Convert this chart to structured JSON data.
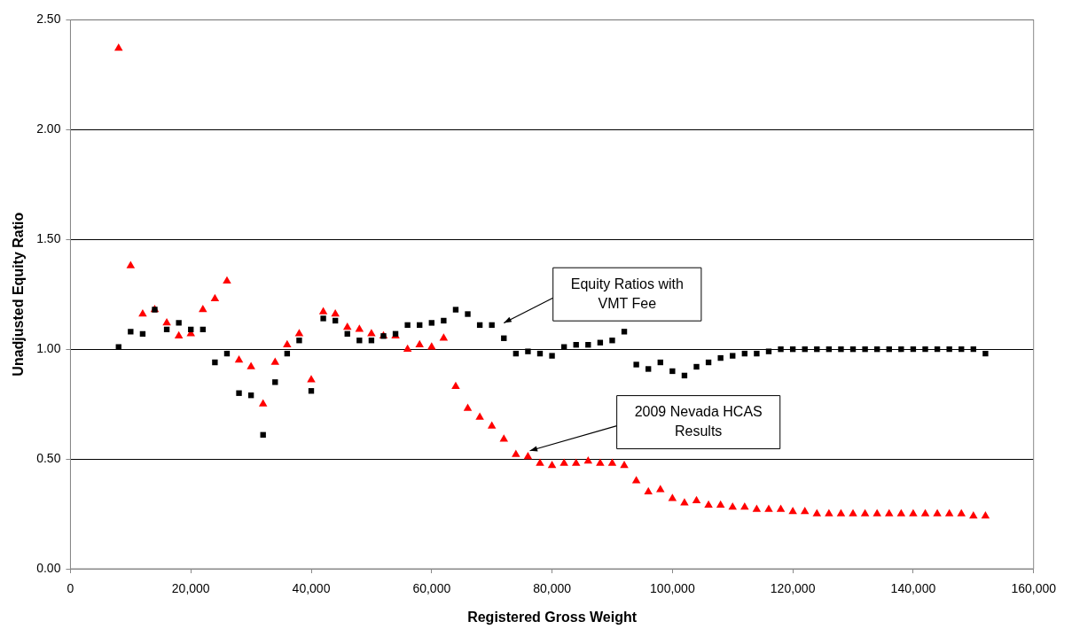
{
  "chart_data": {
    "type": "scatter",
    "xlabel": "Registered Gross Weight",
    "ylabel": "Unadjusted Equity Ratio",
    "x": [
      8000,
      10000,
      12000,
      14000,
      16000,
      18000,
      20000,
      22000,
      24000,
      26000,
      28000,
      30000,
      32000,
      34000,
      36000,
      38000,
      40000,
      42000,
      44000,
      46000,
      48000,
      50000,
      52000,
      54000,
      56000,
      58000,
      60000,
      62000,
      64000,
      66000,
      68000,
      70000,
      72000,
      74000,
      76000,
      78000,
      80000,
      82000,
      84000,
      86000,
      88000,
      90000,
      92000,
      94000,
      96000,
      98000,
      100000,
      102000,
      104000,
      106000,
      108000,
      110000,
      112000,
      114000,
      116000,
      118000,
      120000,
      122000,
      124000,
      126000,
      128000,
      130000,
      132000,
      134000,
      136000,
      138000,
      140000,
      142000,
      144000,
      146000,
      148000,
      150000,
      152000
    ],
    "series": [
      {
        "color": "#000000",
        "marker": "square",
        "values": [
          1.01,
          1.08,
          1.07,
          1.18,
          1.09,
          1.12,
          1.09,
          1.09,
          0.94,
          0.98,
          0.8,
          0.79,
          0.61,
          0.85,
          0.98,
          1.04,
          0.81,
          1.14,
          1.13,
          1.07,
          1.04,
          1.04,
          1.06,
          1.07,
          1.11,
          1.11,
          1.12,
          1.13,
          1.18,
          1.16,
          1.11,
          1.11,
          1.05,
          0.98,
          0.99,
          0.98,
          0.97,
          1.01,
          1.02,
          1.02,
          1.03,
          1.04,
          1.08,
          0.93,
          0.91,
          0.94,
          0.9,
          0.88,
          0.92,
          0.94,
          0.96,
          0.97,
          0.98,
          0.98,
          0.99,
          1.0,
          1.0,
          1.0,
          1.0,
          1.0,
          1.0,
          1.0,
          1.0,
          1.0,
          1.0,
          1.0,
          1.0,
          1.0,
          1.0,
          1.0,
          1.0,
          1.0,
          0.98
        ]
      },
      {
        "color": "#ff0000",
        "marker": "triangle",
        "values": [
          2.37,
          1.38,
          1.16,
          1.18,
          1.12,
          1.06,
          1.07,
          1.18,
          1.23,
          1.31,
          0.95,
          0.92,
          0.75,
          0.94,
          1.02,
          1.07,
          0.86,
          1.17,
          1.16,
          1.1,
          1.09,
          1.07,
          1.06,
          1.06,
          1.0,
          1.02,
          1.01,
          1.05,
          0.83,
          0.73,
          0.69,
          0.65,
          0.59,
          0.52,
          0.51,
          0.48,
          0.47,
          0.48,
          0.48,
          0.49,
          0.48,
          0.48,
          0.47,
          0.4,
          0.35,
          0.36,
          0.32,
          0.3,
          0.31,
          0.29,
          0.29,
          0.28,
          0.28,
          0.27,
          0.27,
          0.27,
          0.26,
          0.26,
          0.25,
          0.25,
          0.25,
          0.25,
          0.25,
          0.25,
          0.25,
          0.25,
          0.25,
          0.25,
          0.25,
          0.25,
          0.25,
          0.24,
          0.24
        ]
      }
    ],
    "xlim": [
      0,
      160000
    ],
    "xticks": [
      0,
      {
        "value": 20000,
        "label": "20,000"
      },
      {
        "value": 40000,
        "label": "40,000"
      },
      {
        "value": 60000,
        "label": "60,000"
      },
      {
        "value": 80000,
        "label": "80,000"
      },
      {
        "value": 100000,
        "label": "100,000"
      },
      {
        "value": 120000,
        "label": "120,000"
      },
      {
        "value": 140000,
        "label": "140,000"
      },
      {
        "value": 160000,
        "label": "160,000"
      }
    ],
    "ylim": [
      0,
      2.5
    ],
    "yticks": [
      {
        "value": 0,
        "label": "0.00"
      },
      {
        "value": 0.5,
        "label": "0.50"
      },
      {
        "value": 1,
        "label": "1.00"
      },
      {
        "value": 1.5,
        "label": "1.50"
      },
      {
        "value": 2,
        "label": "2.00"
      },
      {
        "value": 2.5,
        "label": "2.50"
      }
    ],
    "grid": "y",
    "legend": false,
    "annotations": [
      "Equity Ratios with\nVMT Fee",
      "2009 Nevada HCAS\nResults"
    ]
  }
}
